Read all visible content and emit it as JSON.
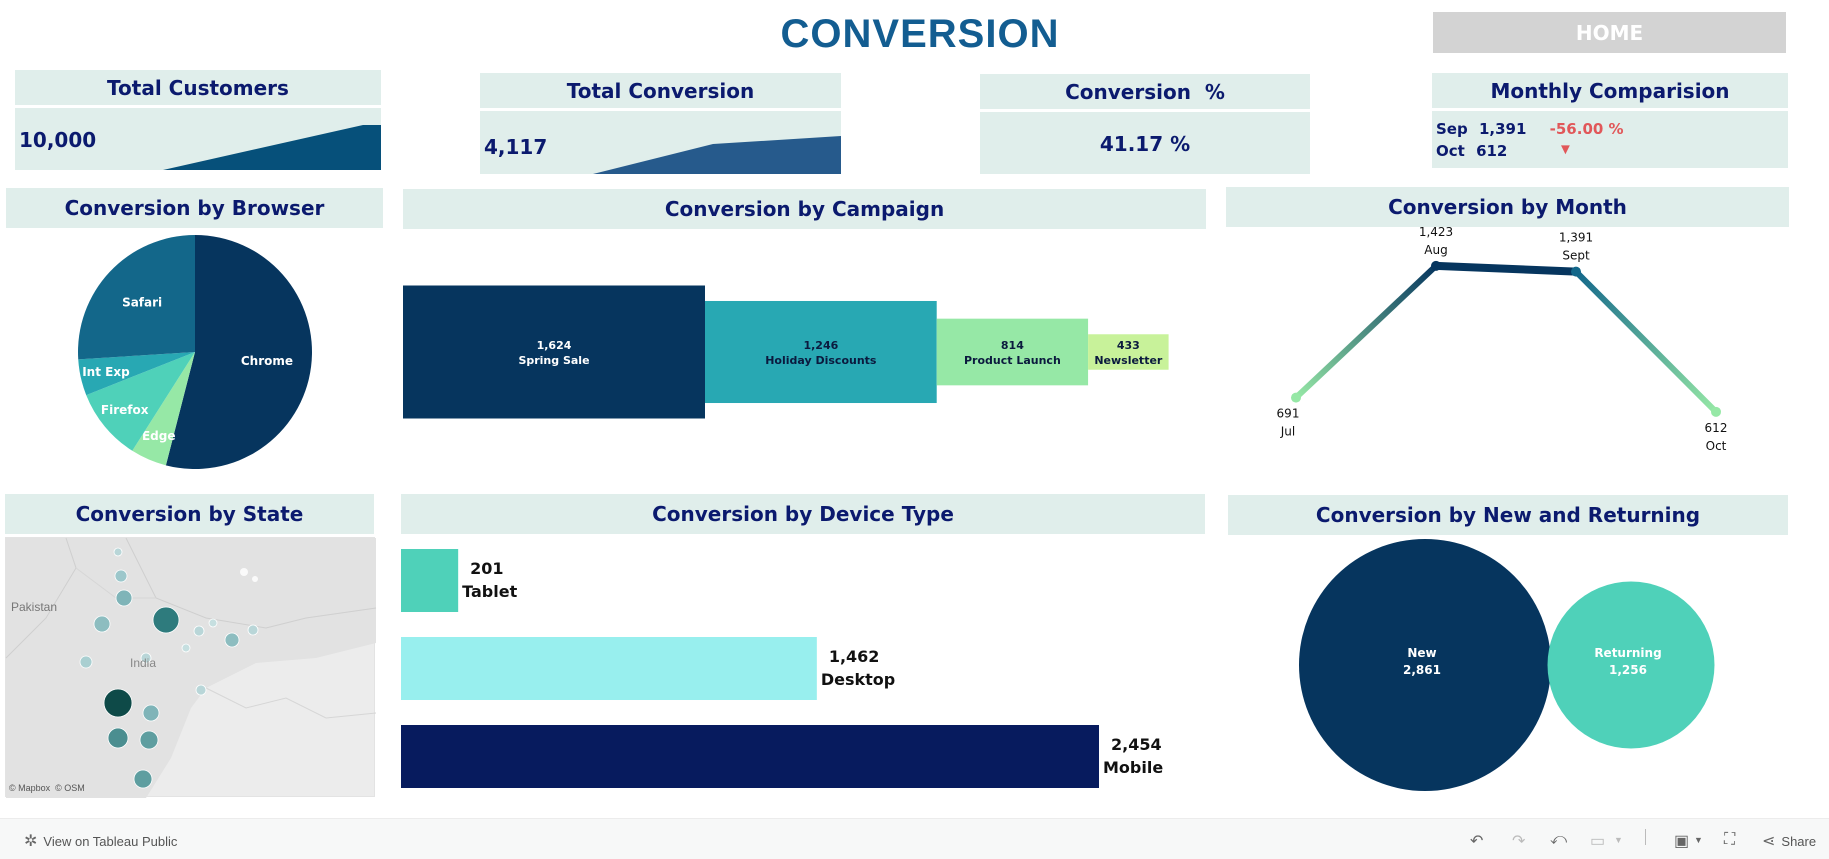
{
  "title": "CONVERSION",
  "home_label": "HOME",
  "kpis": {
    "total_customers": {
      "label": "Total Customers",
      "value": "10,000"
    },
    "total_conversion": {
      "label": "Total Conversion",
      "value": "4,117"
    },
    "conversion_pct": {
      "label": "Conversion  %",
      "value": "41.17 %"
    },
    "monthly": {
      "label": "Monthly Comparision",
      "rows": [
        {
          "month": "Sep",
          "value": "1,391",
          "change": "-56.00 %"
        },
        {
          "month": "Oct",
          "value": "612",
          "arrow": "▼"
        }
      ]
    }
  },
  "sections": {
    "browser": "Conversion by Browser",
    "campaign": "Conversion by Campaign",
    "month": "Conversion by Month",
    "state": "Conversion by State",
    "device": "Conversion by Device Type",
    "new_returning": "Conversion by New and Returning"
  },
  "colors": {
    "navy": "#06355e",
    "teal_dark": "#13678a",
    "teal": "#28a8b3",
    "mint": "#4fd1b9",
    "light_green": "#96e8a6",
    "lime": "#c8f29a",
    "cyan_light": "#98efee",
    "deep_navy": "#071b5e",
    "header_bg": "#e0eeeb",
    "negative": "#e15759"
  },
  "chart_data": [
    {
      "id": "browser",
      "type": "pie",
      "categories": [
        "Chrome",
        "Edge",
        "Firefox",
        "Int Exp",
        "Safari"
      ],
      "values": [
        54,
        5,
        10,
        5,
        26
      ],
      "unit": "%"
    },
    {
      "id": "campaign",
      "type": "bar",
      "categories": [
        "Spring Sale",
        "Holiday Discounts",
        "Product Launch",
        "Newsletter"
      ],
      "values": [
        1624,
        1246,
        814,
        433
      ],
      "value_labels": [
        "1,624",
        "1,246",
        "814",
        "433"
      ]
    },
    {
      "id": "month",
      "type": "line",
      "x": [
        "Jul",
        "Aug",
        "Sept",
        "Oct"
      ],
      "values": [
        691,
        1423,
        1391,
        612
      ],
      "value_labels": [
        "691",
        "1,423",
        "1,391",
        "612"
      ]
    },
    {
      "id": "device",
      "type": "bar",
      "categories": [
        "Tablet",
        "Desktop",
        "Mobile"
      ],
      "values": [
        201,
        1462,
        2454
      ],
      "value_labels": [
        "201",
        "1,462",
        "2,454"
      ]
    },
    {
      "id": "new_returning",
      "type": "scatter",
      "categories": [
        "New",
        "Returning"
      ],
      "values": [
        2861,
        1256
      ],
      "value_labels": [
        "2,861",
        "1,256"
      ]
    }
  ],
  "map": {
    "labels": [
      "Pakistan",
      "India"
    ],
    "attribution": "© Mapbox  © OSM"
  },
  "footer": {
    "view_label": "View on Tableau Public",
    "share_label": "Share"
  }
}
